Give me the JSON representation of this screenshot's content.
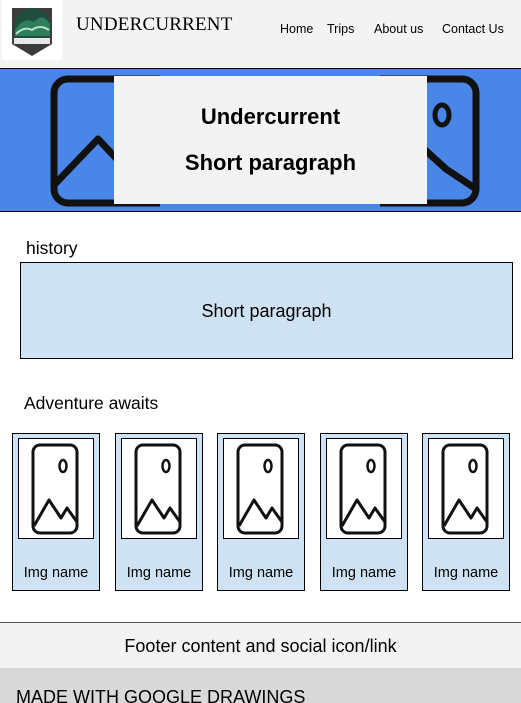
{
  "header": {
    "brand": "UNDERCURRENT",
    "logo_icon": "wave-badge-icon",
    "nav": [
      "Home",
      "Trips",
      "About us",
      "Contact Us"
    ]
  },
  "hero": {
    "title": "Undercurrent",
    "subtitle": "Short paragraph",
    "background_color": "#4a86e8",
    "image_icon": "image-placeholder-icon"
  },
  "history": {
    "heading": "history",
    "text": "Short paragraph",
    "box_color": "#cfe2f3"
  },
  "adventure": {
    "heading": "Adventure awaits",
    "cards": [
      {
        "label": "Img name",
        "icon": "image-placeholder-icon"
      },
      {
        "label": "Img name",
        "icon": "image-placeholder-icon"
      },
      {
        "label": "Img name",
        "icon": "image-placeholder-icon"
      },
      {
        "label": "Img name",
        "icon": "image-placeholder-icon"
      },
      {
        "label": "Img name",
        "icon": "image-placeholder-icon"
      }
    ]
  },
  "footer": {
    "text": "Footer content and social icon/link",
    "made_with": "MADE WITH GOOGLE DRAWINGS"
  }
}
